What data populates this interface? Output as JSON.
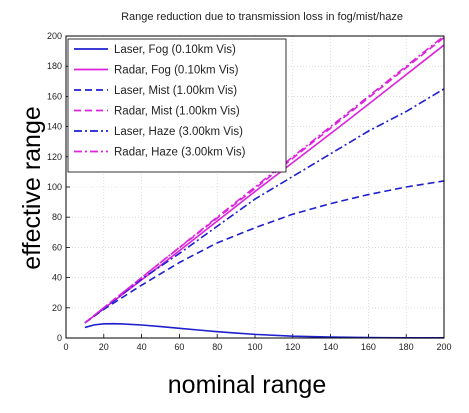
{
  "chart_data": {
    "type": "line",
    "title": "Range reduction due to transmission loss in fog/mist/haze",
    "xlabel": "nominal range",
    "ylabel": "effective range",
    "xlim": [
      0,
      200
    ],
    "ylim": [
      0,
      200
    ],
    "xticks": [
      "0",
      "20",
      "40",
      "60",
      "80",
      "100",
      "120",
      "140",
      "160",
      "180",
      "200"
    ],
    "yticks": [
      "0",
      "20",
      "40",
      "60",
      "80",
      "100",
      "120",
      "140",
      "160",
      "180",
      "200"
    ],
    "grid": true,
    "legend_position": "top-left",
    "series": [
      {
        "name": "Laser, Fog (0.10km Vis)",
        "color": "#1f1fcf",
        "style": "solid",
        "x": [
          10,
          15,
          20,
          25,
          30,
          40,
          50,
          60,
          70,
          80,
          90,
          100,
          120,
          140,
          160,
          180,
          200
        ],
        "y": [
          7,
          8.7,
          9.4,
          9.5,
          9.3,
          8.6,
          7.6,
          6.4,
          5.3,
          4.2,
          3.3,
          2.4,
          1.2,
          0.6,
          0.3,
          0.1,
          0.1
        ]
      },
      {
        "name": "Radar, Fog (0.10km Vis)",
        "color": "#dd22dd",
        "style": "solid",
        "x": [
          10,
          50,
          100,
          150,
          200
        ],
        "y": [
          10,
          48,
          97,
          145,
          194
        ]
      },
      {
        "name": "Laser, Mist (1.00km Vis)",
        "color": "#1f1fcf",
        "style": "dashed",
        "x": [
          10,
          20,
          40,
          60,
          80,
          100,
          120,
          140,
          160,
          180,
          200
        ],
        "y": [
          10,
          19,
          35,
          50,
          63,
          73,
          82,
          89,
          95,
          100,
          104
        ]
      },
      {
        "name": "Radar, Mist (1.00km Vis)",
        "color": "#dd22dd",
        "style": "dashed",
        "x": [
          10,
          50,
          100,
          150,
          200
        ],
        "y": [
          10,
          50,
          99,
          149,
          199
        ]
      },
      {
        "name": "Laser, Haze (3.00km Vis)",
        "color": "#1f1fcf",
        "style": "dashdot",
        "x": [
          10,
          20,
          40,
          60,
          80,
          100,
          120,
          140,
          160,
          180,
          200
        ],
        "y": [
          10,
          19.5,
          39,
          56,
          74,
          92,
          107,
          122,
          137,
          150,
          165
        ]
      },
      {
        "name": "Radar, Haze (3.00km Vis)",
        "color": "#dd22dd",
        "style": "dashdot",
        "x": [
          10,
          50,
          100,
          150,
          200
        ],
        "y": [
          10,
          50,
          100,
          150,
          200
        ]
      }
    ]
  }
}
